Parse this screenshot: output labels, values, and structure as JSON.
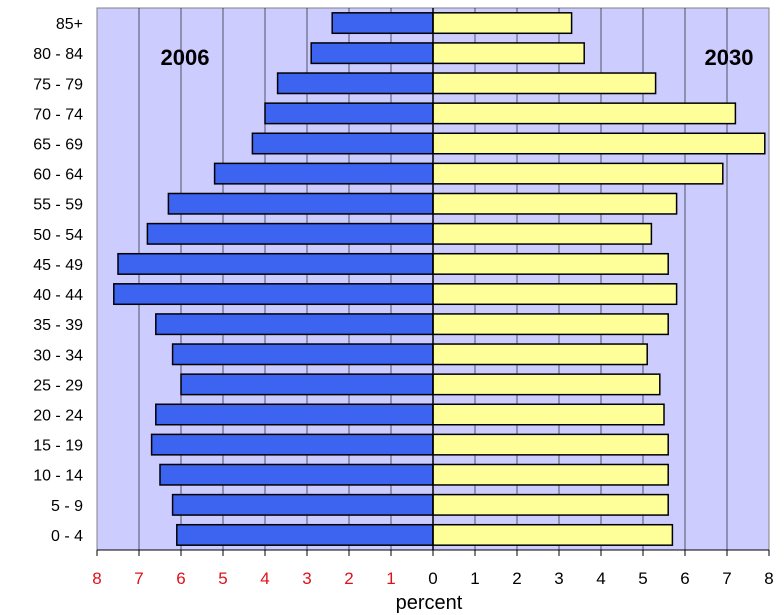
{
  "chart_data": {
    "type": "bar",
    "orientation": "horizontal",
    "categories": [
      "85+",
      "80 - 84",
      "75 - 79",
      "70 - 74",
      "65 - 69",
      "60 - 64",
      "55 - 59",
      "50 - 54",
      "45 - 49",
      "40 - 44",
      "35 - 39",
      "30 - 34",
      "25 - 29",
      "20 - 24",
      "15 - 19",
      "10 - 14",
      "5 - 9",
      "0 - 4"
    ],
    "series": [
      {
        "name": "2006",
        "side": "left",
        "color": "#3C64F0",
        "values": [
          2.4,
          2.9,
          3.7,
          4.0,
          4.3,
          5.2,
          6.3,
          6.8,
          7.5,
          7.6,
          6.6,
          6.2,
          6.0,
          6.6,
          6.7,
          6.5,
          6.2,
          6.1
        ]
      },
      {
        "name": "2030",
        "side": "right",
        "color": "#FFFF99",
        "values": [
          3.3,
          3.6,
          5.3,
          7.2,
          7.9,
          6.9,
          5.8,
          5.2,
          5.6,
          5.8,
          5.6,
          5.1,
          5.4,
          5.5,
          5.6,
          5.6,
          5.6,
          5.7
        ]
      }
    ],
    "xlabel": "percent",
    "xlim": [
      -8,
      8
    ],
    "x_ticks": [
      "8",
      "7",
      "6",
      "5",
      "4",
      "3",
      "2",
      "1",
      "0",
      "1",
      "2",
      "3",
      "4",
      "5",
      "6",
      "7",
      "8"
    ],
    "left_tick_color": "#E0101A",
    "right_tick_color": "#000000",
    "plot_background": "#CCCCFF",
    "grid": true
  }
}
